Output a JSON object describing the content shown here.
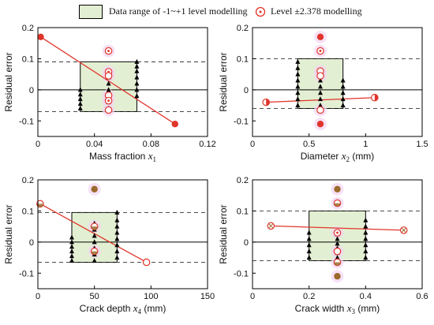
{
  "legend": {
    "box_label": "Data range of -1~+1 level modelling",
    "level_label": "Level  ±2.378 modelling"
  },
  "colors": {
    "box_fill": "#e3efd2",
    "line": "#e0352c",
    "marker_red": "#e0352c",
    "dashed": "#333333",
    "triangle": "#000000",
    "halo": "#f2d6f2",
    "brown": "#9b6a2c"
  },
  "chart_data": [
    {
      "type": "scatter",
      "xlabel": "Mass fraction",
      "xvar": "x",
      "xsub": "1",
      "xunit": "",
      "ylabel": "Residual error",
      "xlim": [
        0,
        0.12
      ],
      "ylim": [
        -0.15,
        0.2
      ],
      "xticks": [
        0,
        0.04,
        0.08,
        0.12
      ],
      "xtick_labels": [
        "0",
        "0.04",
        "0.08",
        "0.12"
      ],
      "yticks": [
        -0.1,
        0,
        0.1,
        0.2
      ],
      "ytick_labels": [
        "-0.1",
        "0",
        "0.1",
        "0.2"
      ],
      "dashed_y": [
        0.09,
        -0.07
      ],
      "box": {
        "x0": 0.03,
        "x1": 0.07,
        "y0": -0.07,
        "y1": 0.09
      },
      "triangles": [
        {
          "x": 0.03,
          "y": [
            -0.06,
            -0.045,
            -0.03,
            -0.015,
            0.0
          ]
        },
        {
          "x": 0.05,
          "y": [
            -0.06,
            -0.04,
            -0.02,
            0.0,
            0.02,
            0.04,
            0.06
          ]
        },
        {
          "x": 0.07,
          "y": [
            -0.02,
            0.0,
            0.02,
            0.04,
            0.06,
            0.075,
            0.09
          ]
        }
      ],
      "filled_red": [
        {
          "x": 0.002,
          "y": 0.17
        },
        {
          "x": 0.097,
          "y": -0.11
        }
      ],
      "open_red": [
        {
          "x": 0.05,
          "y": 0.125,
          "style": "dot"
        },
        {
          "x": 0.05,
          "y": 0.058,
          "style": "dot"
        },
        {
          "x": 0.05,
          "y": 0.045,
          "style": "plain"
        },
        {
          "x": 0.05,
          "y": -0.018,
          "style": "plain"
        },
        {
          "x": 0.05,
          "y": -0.035,
          "style": "dot"
        },
        {
          "x": 0.05,
          "y": -0.065,
          "style": "plain"
        }
      ],
      "brown_filled": [],
      "fit_line": [
        {
          "x": 0.002,
          "y": 0.17
        },
        {
          "x": 0.097,
          "y": -0.11
        }
      ]
    },
    {
      "type": "scatter",
      "xlabel": "Diameter",
      "xvar": "x",
      "xsub": "2",
      "xunit": "(mm)",
      "ylabel": "Residual error",
      "xlim": [
        0,
        1.5
      ],
      "ylim": [
        -0.15,
        0.2
      ],
      "xticks": [
        0,
        0.5,
        1,
        1.5
      ],
      "xtick_labels": [
        "0",
        "0.5",
        "1",
        "1.5"
      ],
      "yticks": [
        -0.1,
        0,
        0.1,
        0.2
      ],
      "ytick_labels": [
        "-0.1",
        "0",
        "0.1",
        "0.2"
      ],
      "dashed_y": [
        0.1,
        -0.06
      ],
      "box": {
        "x0": 0.4,
        "x1": 0.8,
        "y0": -0.06,
        "y1": 0.1
      },
      "triangles": [
        {
          "x": 0.4,
          "y": [
            -0.05,
            -0.03,
            -0.01,
            0.01,
            0.03,
            0.05,
            0.07,
            0.09
          ]
        },
        {
          "x": 0.6,
          "y": [
            -0.05,
            -0.03,
            -0.01,
            0.01,
            0.03,
            0.05
          ]
        },
        {
          "x": 0.8,
          "y": [
            -0.05,
            -0.03,
            -0.01,
            0.01,
            0.03
          ]
        }
      ],
      "filled_red": [
        {
          "x": 0.6,
          "y": 0.17
        },
        {
          "x": 0.6,
          "y": -0.11
        }
      ],
      "open_red": [
        {
          "x": 0.12,
          "y": -0.04,
          "style": "half"
        },
        {
          "x": 1.08,
          "y": -0.025,
          "style": "half"
        },
        {
          "x": 0.6,
          "y": 0.125,
          "style": "dot"
        },
        {
          "x": 0.6,
          "y": 0.06,
          "style": "plain"
        },
        {
          "x": 0.6,
          "y": 0.045,
          "style": "plain"
        },
        {
          "x": 0.6,
          "y": -0.065,
          "style": "plain"
        }
      ],
      "brown_filled": [],
      "fit_line": [
        {
          "x": 0.12,
          "y": -0.04
        },
        {
          "x": 1.08,
          "y": -0.025
        }
      ]
    },
    {
      "type": "scatter",
      "xlabel": "Crack depth",
      "xvar": "x",
      "xsub": "4",
      "xunit": "(mm)",
      "ylabel": "Residual error",
      "xlim": [
        0,
        150
      ],
      "ylim": [
        -0.15,
        0.2
      ],
      "xticks": [
        0,
        50,
        100,
        150
      ],
      "xtick_labels": [
        "0",
        "50",
        "100",
        "150"
      ],
      "yticks": [
        -0.1,
        0,
        0.1,
        0.2
      ],
      "ytick_labels": [
        "-0.1",
        "0",
        "0.1",
        "0.2"
      ],
      "dashed_y": [
        0.095,
        -0.065
      ],
      "box": {
        "x0": 30,
        "x1": 70,
        "y0": -0.065,
        "y1": 0.095
      },
      "triangles": [
        {
          "x": 30,
          "y": [
            -0.06,
            -0.045,
            -0.03,
            -0.015,
            0.0,
            0.015
          ]
        },
        {
          "x": 50,
          "y": [
            -0.06,
            -0.04,
            -0.02,
            0.0,
            0.02,
            0.04,
            0.06
          ]
        },
        {
          "x": 70,
          "y": [
            -0.05,
            -0.03,
            -0.01,
            0.01,
            0.03,
            0.05,
            0.07,
            0.095
          ]
        }
      ],
      "filled_red": [],
      "open_red": [
        {
          "x": 2,
          "y": 0.123,
          "style": "halfbrown"
        },
        {
          "x": 96,
          "y": -0.065,
          "style": "plain"
        },
        {
          "x": 50,
          "y": 0.05,
          "style": "halfbrown"
        },
        {
          "x": 50,
          "y": -0.03,
          "style": "halfbrown"
        }
      ],
      "brown_filled": [
        {
          "x": 50,
          "y": 0.17
        }
      ],
      "fit_line": [
        {
          "x": 2,
          "y": 0.123
        },
        {
          "x": 96,
          "y": -0.065
        }
      ]
    },
    {
      "type": "scatter",
      "xlabel": "Crack width",
      "xvar": "x",
      "xsub": "3",
      "xunit": "(mm)",
      "ylabel": "Residual error",
      "xlim": [
        0,
        0.6
      ],
      "ylim": [
        -0.15,
        0.2
      ],
      "xticks": [
        0,
        0.2,
        0.4,
        0.6
      ],
      "xtick_labels": [
        "0",
        "0.2",
        "0.4",
        "0.6"
      ],
      "yticks": [
        -0.1,
        0,
        0.1,
        0.2
      ],
      "ytick_labels": [
        "-0.1",
        "0",
        "0.1",
        "0.2"
      ],
      "dashed_y": [
        0.1,
        -0.06
      ],
      "box": {
        "x0": 0.2,
        "x1": 0.4,
        "y0": -0.06,
        "y1": 0.1
      },
      "triangles": [
        {
          "x": 0.2,
          "y": [
            -0.05,
            -0.03,
            -0.01,
            0.01,
            0.03
          ]
        },
        {
          "x": 0.3,
          "y": [
            -0.05,
            -0.035,
            -0.02,
            -0.005,
            0.01,
            0.025
          ]
        },
        {
          "x": 0.4,
          "y": [
            -0.05,
            -0.03,
            -0.01,
            0.01,
            0.03,
            0.05,
            0.07
          ]
        }
      ],
      "filled_red": [],
      "open_red": [
        {
          "x": 0.065,
          "y": 0.052,
          "style": "cross"
        },
        {
          "x": 0.535,
          "y": 0.038,
          "style": "cross"
        },
        {
          "x": 0.3,
          "y": 0.125,
          "style": "halfbrown"
        },
        {
          "x": 0.3,
          "y": 0.03,
          "style": "dot"
        },
        {
          "x": 0.3,
          "y": -0.03,
          "style": "plain"
        },
        {
          "x": 0.3,
          "y": -0.065,
          "style": "halfbrown"
        }
      ],
      "brown_filled": [
        {
          "x": 0.3,
          "y": 0.17
        },
        {
          "x": 0.3,
          "y": -0.11
        }
      ],
      "fit_line": [
        {
          "x": 0.065,
          "y": 0.052
        },
        {
          "x": 0.535,
          "y": 0.038
        }
      ]
    }
  ]
}
